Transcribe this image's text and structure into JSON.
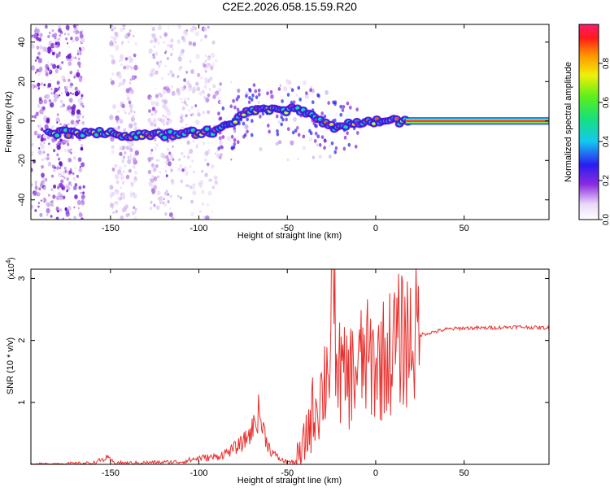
{
  "title": "C2E2.2026.058.15.59.R20",
  "colors": {
    "snr_line": "#e8312e",
    "axis": "#000000",
    "ridge_core": "#e8003a"
  },
  "chart_data": [
    {
      "type": "heatmap",
      "title": "C2E2.2026.058.15.59.R20",
      "xlabel": "Height of straight line (km)",
      "ylabel": "Frequency (Hz)",
      "xlim": [
        -195,
        98
      ],
      "ylim": [
        -50,
        49
      ],
      "x_ticks": [
        -150,
        -100,
        -50,
        0,
        50
      ],
      "y_ticks": [
        -40,
        -20,
        0,
        20,
        40
      ],
      "colorbar": {
        "label": "Normalized spectral amplitude",
        "range": [
          0,
          1
        ],
        "ticks": [
          0.0,
          0.2,
          0.4,
          0.6,
          0.8
        ],
        "tick_labels": [
          "0.0",
          "0.2",
          "0.4",
          "0.6",
          "0.8"
        ]
      },
      "ridge": {
        "x": [
          -180,
          -160,
          -140,
          -120,
          -100,
          -90,
          -82,
          -75,
          -65,
          -55,
          -45,
          -38,
          -30,
          -25,
          -15,
          -5,
          5,
          15,
          20,
          98
        ],
        "frequency": [
          -6,
          -6,
          -7,
          -7,
          -6,
          -5,
          -2,
          3,
          7,
          5,
          6,
          4,
          -1,
          -3,
          -2,
          -1,
          0,
          0,
          0,
          0
        ]
      }
    },
    {
      "type": "line",
      "xlabel": "Height of straight line (km)",
      "ylabel": "SNR (10 * v/v)",
      "y_scale_label": "(x10",
      "y_scale_exp": "4",
      "y_scale_close": ")",
      "xlim": [
        -195,
        98
      ],
      "ylim": [
        0,
        3.15
      ],
      "x_ticks": [
        -150,
        -100,
        -50,
        0,
        50
      ],
      "y_ticks": [
        1,
        2,
        3
      ],
      "series": [
        {
          "name": "SNR",
          "x": [
            -195,
            -160,
            -152,
            -148,
            -140,
            -110,
            -100,
            -90,
            -82,
            -75,
            -70,
            -66,
            -64,
            -60,
            -56,
            -52,
            -46,
            -42,
            -38,
            -35,
            -30,
            -26,
            -24,
            -22,
            -18,
            -12,
            -6,
            0,
            6,
            12,
            18,
            24,
            30,
            40,
            50,
            60,
            80,
            98
          ],
          "y": [
            0.0,
            0.02,
            0.1,
            0.03,
            0.02,
            0.04,
            0.1,
            0.12,
            0.22,
            0.35,
            0.55,
            0.85,
            0.6,
            0.25,
            0.12,
            0.05,
            0.03,
            0.15,
            0.6,
            0.9,
            1.2,
            1.8,
            3.1,
            1.6,
            1.35,
            1.5,
            1.7,
            1.6,
            1.75,
            1.95,
            2.05,
            2.08,
            2.12,
            2.18,
            2.2,
            2.2,
            2.22,
            2.2
          ]
        }
      ]
    }
  ]
}
